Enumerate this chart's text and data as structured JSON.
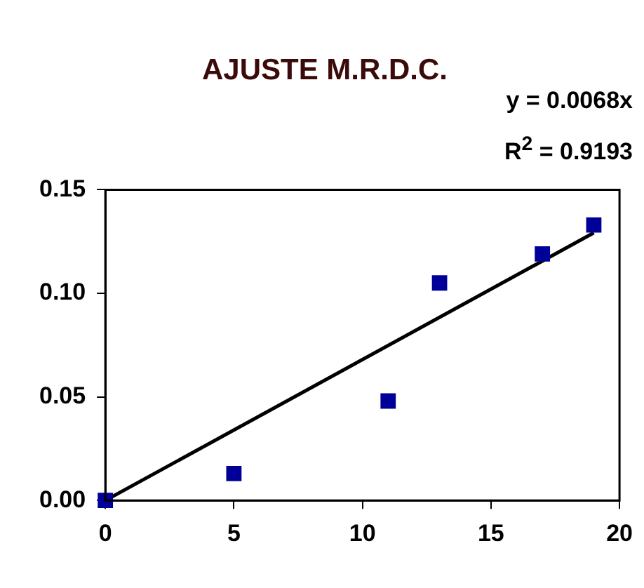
{
  "chart_data": {
    "type": "scatter",
    "title": "AJUSTE M.R.D.C.",
    "annotations": [
      "y = 0.0068x",
      "R$^{2}$ = 0.9193"
    ],
    "series": [
      {
        "type": "scatter",
        "marker": "square",
        "color": "#000099",
        "x": [
          0,
          5,
          11,
          13,
          17,
          19
        ],
        "values": [
          0,
          0.013,
          0.048,
          0.105,
          0.119,
          0.133
        ]
      },
      {
        "type": "line",
        "marker": "none",
        "color": "#000000",
        "x": [
          0,
          19
        ],
        "values": [
          0,
          0.1292
        ]
      }
    ],
    "xlim": [
      0,
      20
    ],
    "xticks": [
      0,
      5,
      10,
      15,
      20
    ],
    "ylim": [
      0,
      0.15
    ],
    "yticks": [
      {
        "value": 0,
        "label": "0.00"
      },
      {
        "value": 0.05,
        "label": "0.05"
      },
      {
        "value": 0.1,
        "label": "0.10"
      },
      {
        "value": 0.15,
        "label": "0.15"
      }
    ],
    "grid": false,
    "legend": false
  }
}
